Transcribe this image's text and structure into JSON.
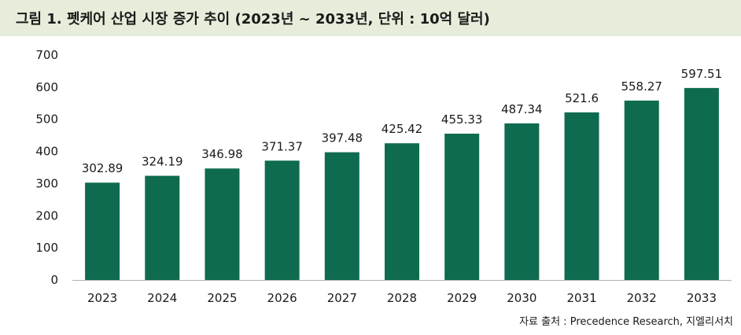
{
  "title": "그림 1. 펫케어 산업 시장 증가 추이 (2023년 ~ 2033년, 단위 : 10억 달러)",
  "source": "자료 출처 : Precedence Research, 지엘리서치",
  "colors": {
    "bar": "#0f6b4f",
    "title_background": "#e6eedb",
    "axis": "#b0b0b0"
  },
  "chart_data": {
    "type": "bar",
    "title": "그림 1. 펫케어 산업 시장 증가 추이 (2023년 ~ 2033년, 단위 : 10억 달러)",
    "xlabel": "",
    "ylabel": "",
    "categories": [
      "2023",
      "2024",
      "2025",
      "2026",
      "2027",
      "2028",
      "2029",
      "2030",
      "2031",
      "2032",
      "2033"
    ],
    "values": [
      302.89,
      324.19,
      346.98,
      371.37,
      397.48,
      425.42,
      455.33,
      487.34,
      521.6,
      558.27,
      597.51
    ],
    "data_labels": [
      "302.89",
      "324.19",
      "346.98",
      "371.37",
      "397.48",
      "425.42",
      "455.33",
      "487.34",
      "521.6",
      "558.27",
      "597.51"
    ],
    "ylim": [
      0,
      700
    ],
    "yticks": [
      "0",
      "100",
      "200",
      "300",
      "400",
      "500",
      "600",
      "700"
    ],
    "grid": false,
    "legend": "none"
  }
}
